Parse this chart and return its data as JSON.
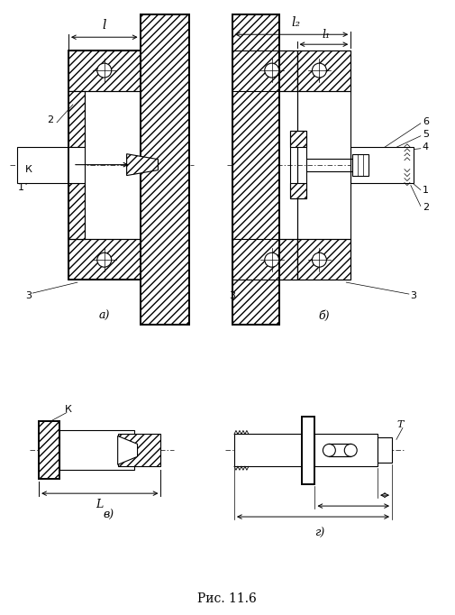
{
  "bg_color": "#ffffff",
  "line_color": "#000000",
  "caption": "Рис. 11.6",
  "label_a": "а)",
  "label_b": "б)",
  "label_v": "в)",
  "label_g": "г)"
}
